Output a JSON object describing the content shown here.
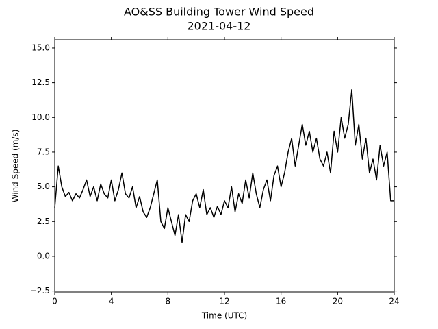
{
  "chart_data": {
    "type": "line",
    "title": "AO&SS Building Tower Wind Speed",
    "subtitle": "2021-04-12",
    "x_label": "Time (UTC)",
    "y_label": "Wind Speed (m/s)",
    "xlim": [
      0,
      24
    ],
    "xticks": [
      0,
      4,
      8,
      12,
      16,
      20,
      24
    ],
    "ylim": [
      -2.57,
      15.59
    ],
    "yticks": [
      {
        "value": -2.5,
        "label": "−2.5"
      },
      {
        "value": 0,
        "label": "0.0"
      },
      2.5,
      {
        "value": 5,
        "label": "5.0"
      },
      7.5,
      {
        "value": 10,
        "label": "10.0"
      },
      12.5,
      {
        "value": 15,
        "label": "15.0"
      }
    ],
    "series": [
      {
        "color": "#000000",
        "x": [
          0,
          0.25,
          0.5,
          0.75,
          1,
          1.25,
          1.5,
          1.75,
          2,
          2.25,
          2.5,
          2.75,
          3,
          3.25,
          3.5,
          3.75,
          4,
          4.25,
          4.5,
          4.75,
          5,
          5.25,
          5.5,
          5.75,
          6,
          6.25,
          6.5,
          6.75,
          7,
          7.25,
          7.5,
          7.75,
          8,
          8.25,
          8.5,
          8.75,
          9,
          9.25,
          9.5,
          9.75,
          10,
          10.25,
          10.5,
          10.75,
          11,
          11.25,
          11.5,
          11.75,
          12,
          12.25,
          12.5,
          12.75,
          13,
          13.25,
          13.5,
          13.75,
          14,
          14.25,
          14.5,
          14.75,
          15,
          15.25,
          15.5,
          15.75,
          16,
          16.25,
          16.5,
          16.75,
          17,
          17.25,
          17.5,
          17.75,
          18,
          18.25,
          18.5,
          18.75,
          19,
          19.25,
          19.5,
          19.75,
          20,
          20.25,
          20.5,
          20.75,
          21,
          21.25,
          21.5,
          21.75,
          22,
          22.25,
          22.5,
          22.75,
          23,
          23.25,
          23.5,
          23.75,
          24
        ],
        "values": [
          3.5,
          6.5,
          5.0,
          4.3,
          4.6,
          4.0,
          4.5,
          4.2,
          4.8,
          5.5,
          4.3,
          5.0,
          4.0,
          5.2,
          4.5,
          4.2,
          5.5,
          4.0,
          4.8,
          6.0,
          4.5,
          4.2,
          5.0,
          3.5,
          4.3,
          3.2,
          2.8,
          3.5,
          4.5,
          5.5,
          2.5,
          2.0,
          3.5,
          2.5,
          1.5,
          3.0,
          1.0,
          3.0,
          2.5,
          4.0,
          4.5,
          3.5,
          4.8,
          3.0,
          3.5,
          2.8,
          3.6,
          3.0,
          4.0,
          3.5,
          5.0,
          3.2,
          4.5,
          3.8,
          5.5,
          4.2,
          6.0,
          4.5,
          3.5,
          4.8,
          5.5,
          4.0,
          5.8,
          6.5,
          5.0,
          6.0,
          7.5,
          8.5,
          6.5,
          8.0,
          9.5,
          8.0,
          9.0,
          7.5,
          8.5,
          7.0,
          6.5,
          7.5,
          6.0,
          9.0,
          7.5,
          10.0,
          8.5,
          9.5,
          12.0,
          8.0,
          9.5,
          7.0,
          8.5,
          6.0,
          7.0,
          5.5,
          8.0,
          6.5,
          7.5,
          4.0,
          4.0
        ]
      }
    ]
  }
}
